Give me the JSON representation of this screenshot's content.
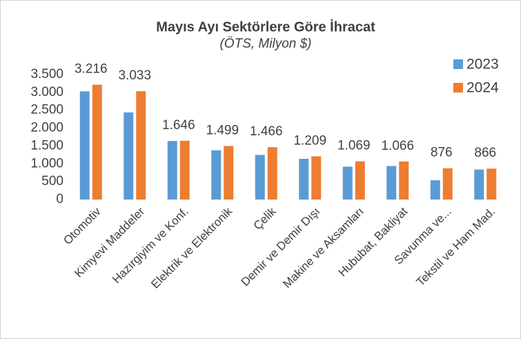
{
  "chart_data": {
    "type": "bar",
    "title": "Mayıs Ayı Sektörlere Göre İhracat",
    "subtitle": "(ÖTS, Milyon $)",
    "categories": [
      "Otomotiv",
      "Kimyevi Maddeler",
      "Hazırgiyim ve Konf.",
      "Elektrik ve Elektronik",
      "Çelik",
      "Demir ve Demir Dışı",
      "Makine ve Aksamları",
      "Hububat, Bakliyat",
      "Savunma ve...",
      "Tekstil ve Ham Mad."
    ],
    "series": [
      {
        "name": "2023",
        "color": "#5b9bd5",
        "values": [
          3030,
          2440,
          1640,
          1380,
          1250,
          1140,
          920,
          940,
          540,
          840
        ]
      },
      {
        "name": "2024",
        "color": "#ed7d31",
        "values": [
          3216,
          3033,
          1646,
          1499,
          1466,
          1209,
          1069,
          1066,
          876,
          866
        ],
        "value_labels": [
          "3.216",
          "3.033",
          "1.646",
          "1.499",
          "1.466",
          "1.209",
          "1.069",
          "1.066",
          "876",
          "866"
        ]
      }
    ],
    "ylim": [
      0,
      3500
    ],
    "yticks": [
      0,
      {
        "value": 500,
        "label": "500"
      },
      {
        "value": 1000,
        "label": "1.000"
      },
      {
        "value": 1500,
        "label": "1.500"
      },
      {
        "value": 2000,
        "label": "2.000"
      },
      {
        "value": 2500,
        "label": "2.500"
      },
      {
        "value": 3000,
        "label": "3.000"
      },
      {
        "value": 3500,
        "label": "3.500"
      }
    ],
    "legend": "top-right"
  }
}
